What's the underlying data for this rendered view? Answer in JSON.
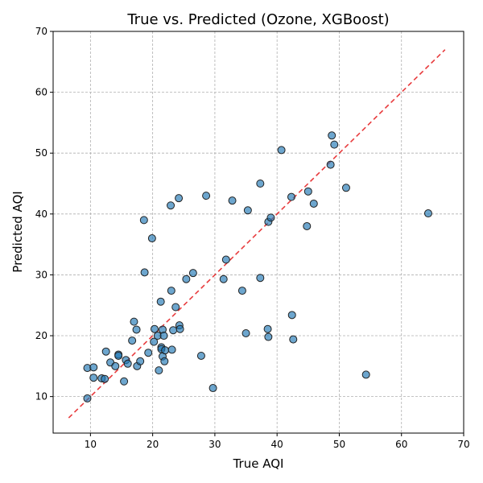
{
  "chart_data": {
    "type": "scatter",
    "title": "True vs. Predicted (Ozone, XGBoost)",
    "xlabel": "True AQI",
    "ylabel": "Predicted AQI",
    "xlim": [
      4,
      70
    ],
    "ylim": [
      4,
      70
    ],
    "xticks": [
      10,
      20,
      30,
      40,
      50,
      60,
      70
    ],
    "yticks": [
      10,
      20,
      30,
      40,
      50,
      60,
      70
    ],
    "grid": true,
    "point_color": "#1f77b4",
    "point_edge_color": "#222222",
    "reference_line": {
      "x": [
        6.5,
        67
      ],
      "y": [
        6.5,
        67
      ],
      "color": "#e41a1c",
      "style": "dashed"
    },
    "points": [
      [
        9.5,
        9.7
      ],
      [
        9.5,
        14.7
      ],
      [
        10.5,
        14.8
      ],
      [
        10.5,
        13.1
      ],
      [
        11.8,
        13.0
      ],
      [
        12.3,
        12.9
      ],
      [
        12.5,
        17.4
      ],
      [
        13.2,
        15.6
      ],
      [
        14.0,
        15.0
      ],
      [
        14.5,
        16.9
      ],
      [
        14.5,
        16.7
      ],
      [
        15.4,
        12.5
      ],
      [
        15.7,
        16.0
      ],
      [
        16.0,
        15.4
      ],
      [
        16.7,
        19.2
      ],
      [
        17.0,
        22.3
      ],
      [
        17.4,
        21.0
      ],
      [
        17.5,
        15.0
      ],
      [
        18.0,
        15.8
      ],
      [
        18.6,
        39.0
      ],
      [
        18.7,
        30.4
      ],
      [
        19.3,
        17.2
      ],
      [
        19.9,
        36.0
      ],
      [
        20.2,
        19.0
      ],
      [
        20.3,
        21.1
      ],
      [
        20.8,
        20.0
      ],
      [
        21.0,
        14.3
      ],
      [
        21.3,
        25.6
      ],
      [
        21.4,
        18.1
      ],
      [
        21.4,
        17.8
      ],
      [
        21.6,
        16.6
      ],
      [
        21.6,
        21.0
      ],
      [
        21.8,
        20.0
      ],
      [
        21.9,
        15.8
      ],
      [
        22.0,
        17.6
      ],
      [
        22.9,
        41.4
      ],
      [
        23.0,
        27.4
      ],
      [
        23.1,
        17.7
      ],
      [
        23.3,
        20.9
      ],
      [
        23.7,
        24.7
      ],
      [
        24.2,
        42.6
      ],
      [
        24.3,
        21.7
      ],
      [
        24.4,
        21.1
      ],
      [
        25.4,
        29.3
      ],
      [
        26.5,
        30.3
      ],
      [
        27.8,
        16.7
      ],
      [
        28.6,
        43.0
      ],
      [
        29.7,
        11.4
      ],
      [
        31.4,
        29.3
      ],
      [
        31.8,
        32.5
      ],
      [
        32.8,
        42.2
      ],
      [
        34.4,
        27.4
      ],
      [
        35.0,
        20.4
      ],
      [
        35.3,
        40.6
      ],
      [
        37.3,
        29.5
      ],
      [
        37.3,
        45.0
      ],
      [
        38.5,
        21.1
      ],
      [
        38.6,
        19.8
      ],
      [
        38.6,
        38.7
      ],
      [
        39.0,
        39.4
      ],
      [
        40.7,
        50.5
      ],
      [
        42.3,
        42.8
      ],
      [
        42.4,
        23.4
      ],
      [
        42.6,
        19.4
      ],
      [
        44.8,
        38.0
      ],
      [
        45.0,
        43.7
      ],
      [
        45.9,
        41.7
      ],
      [
        48.6,
        48.1
      ],
      [
        48.8,
        52.9
      ],
      [
        49.2,
        51.4
      ],
      [
        51.1,
        44.3
      ],
      [
        54.3,
        13.6
      ],
      [
        64.3,
        40.1
      ]
    ]
  }
}
